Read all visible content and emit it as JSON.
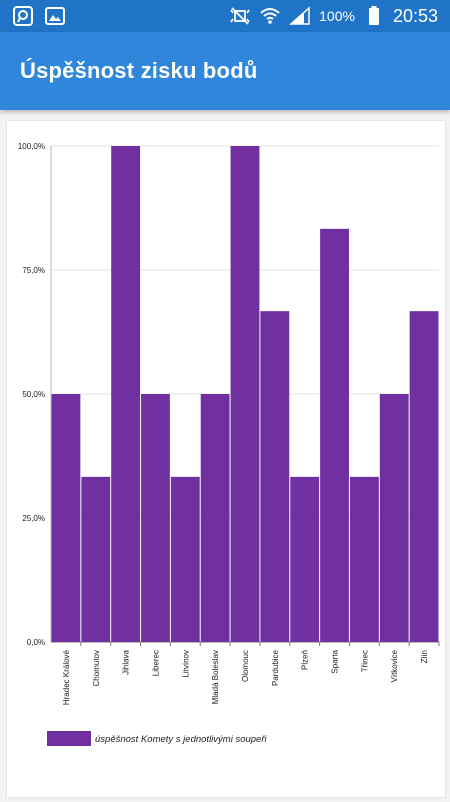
{
  "status_bar": {
    "battery_percent": "100%",
    "time": "20:53",
    "icons": [
      "app-notification-icon",
      "image-notification-icon",
      "mute-icon",
      "wifi-icon",
      "signal-icon",
      "battery-icon"
    ]
  },
  "app_bar": {
    "title": "Úspěšnost zisku bodů"
  },
  "colors": {
    "status_bar": "#1f74c8",
    "app_bar": "#2f86db",
    "bar": "#7030a0"
  },
  "chart_data": {
    "type": "bar",
    "categories": [
      "Hradec Králové",
      "Chomutov",
      "Jihlava",
      "Liberec",
      "Litvínov",
      "Mladá Boleslav",
      "Olomouc",
      "Pardubice",
      "Plzeň",
      "Sparta",
      "Třinec",
      "Vítkovice",
      "Zlín"
    ],
    "series": [
      {
        "name": "úspěšnost Komety s jednotlivými soupeři",
        "values": [
          50.0,
          33.3,
          100.0,
          50.0,
          33.3,
          50.0,
          100.0,
          66.7,
          33.3,
          83.3,
          33.3,
          50.0,
          66.7
        ]
      }
    ],
    "ylim": [
      0,
      100
    ],
    "yticks": [
      "0,0%",
      "25,0%",
      "50,0%",
      "75,0%",
      "100,0%"
    ],
    "grid": true,
    "legend": "bottom-left"
  }
}
